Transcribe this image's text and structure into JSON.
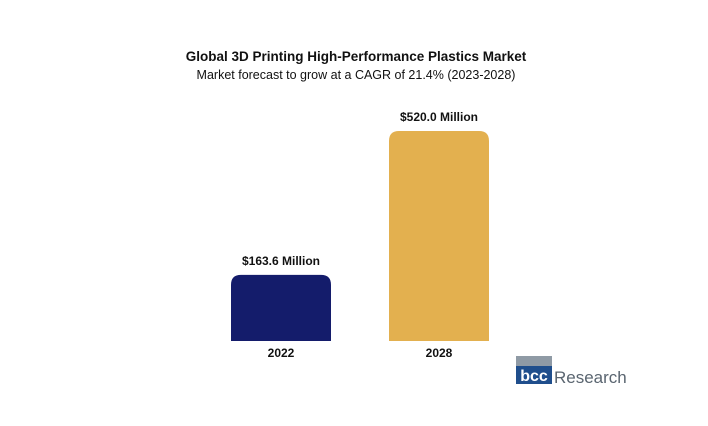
{
  "chart_data": {
    "type": "bar",
    "title": "Global 3D Printing High-Performance Plastics Market",
    "subtitle": "Market forecast to grow at a CAGR of 21.4% (2023-2028)",
    "categories": [
      "2022",
      "2028"
    ],
    "values": [
      163.6,
      520.0
    ],
    "data_labels": [
      "$163.6 Million",
      "$520.0 Million"
    ],
    "colors": [
      "#141c6b",
      "#e3b04f"
    ],
    "xlabel": "",
    "ylabel": "",
    "ylim": [
      0,
      520
    ],
    "grid": false,
    "legend": "none"
  },
  "logo": {
    "mark_text": "bcc",
    "word_text": "Research",
    "mark_color": "#1f4e8c",
    "bar_color": "#8f9aa5"
  }
}
